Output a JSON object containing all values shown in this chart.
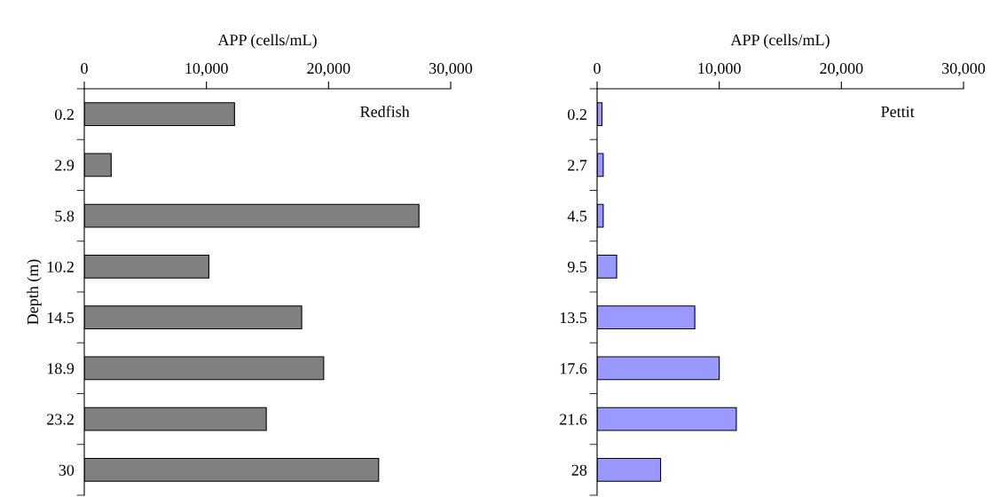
{
  "chart_data": [
    {
      "type": "bar",
      "orientation": "horizontal",
      "xlabel": "APP (cells/mL)",
      "ylabel": "Depth (m)",
      "categories": [
        "0.2",
        "2.9",
        "5.8",
        "10.2",
        "14.5",
        "18.9",
        "23.2",
        "30"
      ],
      "series": [
        {
          "color": "#808080",
          "values": [
            12300,
            2200,
            27400,
            10200,
            17800,
            19600,
            14900,
            24100
          ]
        }
      ],
      "xlim": [
        0,
        30000
      ],
      "xticks": [
        0,
        {
          "value": 10000,
          "label": "10,000"
        },
        {
          "value": 20000,
          "label": "20,000"
        },
        {
          "value": 30000,
          "label": "30,000"
        }
      ],
      "annotations": [
        "Redfish"
      ],
      "grid": false,
      "legend": false
    },
    {
      "type": "bar",
      "orientation": "horizontal",
      "xlabel": "APP (cells/mL)",
      "categories": [
        "0.2",
        "2.7",
        "4.5",
        "9.5",
        "13.5",
        "17.6",
        "21.6",
        "28"
      ],
      "series": [
        {
          "color": "#9999ff",
          "values": [
            400,
            500,
            500,
            1600,
            8000,
            10000,
            11400,
            5200
          ]
        }
      ],
      "xlim": [
        0,
        30000
      ],
      "xticks": [
        0,
        {
          "value": 10000,
          "label": "10,000"
        },
        {
          "value": 20000,
          "label": "20,000"
        },
        {
          "value": 30000,
          "label": "30,000"
        }
      ],
      "annotations": [
        "Pettit"
      ],
      "grid": false,
      "legend": false
    }
  ]
}
